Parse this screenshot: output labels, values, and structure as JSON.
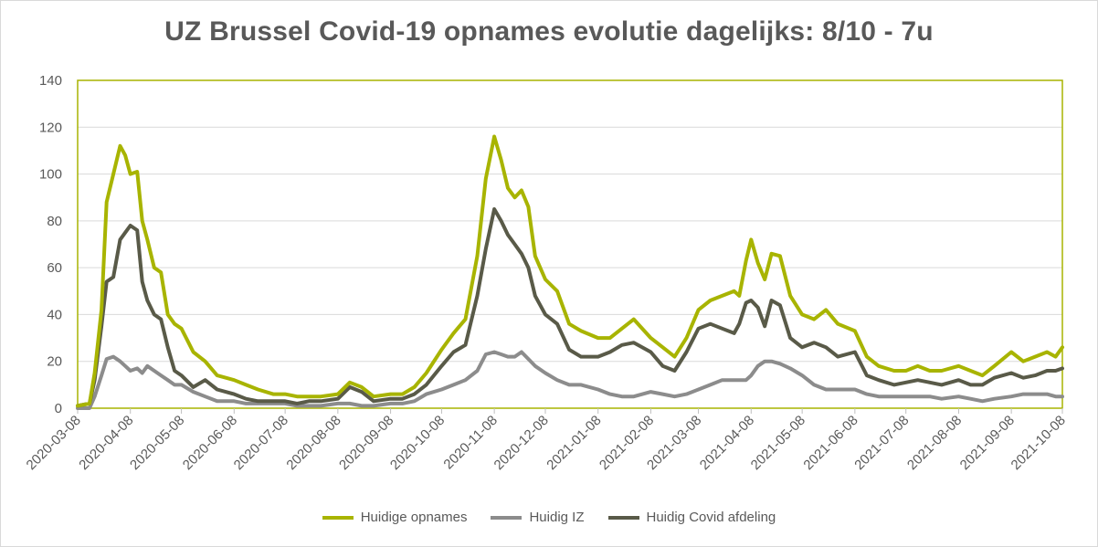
{
  "chart_data": {
    "type": "line",
    "title": "UZ Brussel Covid-19 opnames evolutie dagelijks: 8/10 - 7u",
    "xlabel": "",
    "ylabel": "",
    "ylim": [
      0,
      140
    ],
    "yticks": [
      "0",
      "20",
      "40",
      "60",
      "80",
      "100",
      "120",
      "140"
    ],
    "xticks": [
      "2020-03-08",
      "2020-04-08",
      "2020-05-08",
      "2020-06-08",
      "2020-07-08",
      "2020-08-08",
      "2020-09-08",
      "2020-10-08",
      "2020-11-08",
      "2020-12-08",
      "2021-01-08",
      "2021-02-08",
      "2021-03-08",
      "2021-04-08",
      "2021-05-08",
      "2021-06-08",
      "2021-07-08",
      "2021-08-08",
      "2021-09-08",
      "2021-10-08"
    ],
    "x": [
      "2020-03-08",
      "2020-03-15",
      "2020-03-18",
      "2020-03-22",
      "2020-03-25",
      "2020-03-29",
      "2020-04-02",
      "2020-04-05",
      "2020-04-08",
      "2020-04-12",
      "2020-04-15",
      "2020-04-18",
      "2020-04-22",
      "2020-04-26",
      "2020-04-30",
      "2020-05-04",
      "2020-05-08",
      "2020-05-15",
      "2020-05-22",
      "2020-05-29",
      "2020-06-08",
      "2020-06-15",
      "2020-06-22",
      "2020-07-01",
      "2020-07-08",
      "2020-07-15",
      "2020-07-22",
      "2020-07-29",
      "2020-08-08",
      "2020-08-15",
      "2020-08-22",
      "2020-08-29",
      "2020-09-08",
      "2020-09-15",
      "2020-09-22",
      "2020-09-29",
      "2020-10-08",
      "2020-10-15",
      "2020-10-22",
      "2020-10-29",
      "2020-11-03",
      "2020-11-08",
      "2020-11-12",
      "2020-11-16",
      "2020-11-20",
      "2020-11-24",
      "2020-11-28",
      "2020-12-02",
      "2020-12-08",
      "2020-12-15",
      "2020-12-22",
      "2020-12-29",
      "2021-01-08",
      "2021-01-15",
      "2021-01-22",
      "2021-01-29",
      "2021-02-08",
      "2021-02-15",
      "2021-02-22",
      "2021-03-01",
      "2021-03-08",
      "2021-03-15",
      "2021-03-22",
      "2021-03-29",
      "2021-04-01",
      "2021-04-05",
      "2021-04-08",
      "2021-04-12",
      "2021-04-16",
      "2021-04-20",
      "2021-04-25",
      "2021-05-01",
      "2021-05-08",
      "2021-05-15",
      "2021-05-22",
      "2021-05-29",
      "2021-06-08",
      "2021-06-15",
      "2021-06-22",
      "2021-07-01",
      "2021-07-08",
      "2021-07-15",
      "2021-07-22",
      "2021-07-29",
      "2021-08-08",
      "2021-08-15",
      "2021-08-22",
      "2021-08-29",
      "2021-09-08",
      "2021-09-15",
      "2021-09-22",
      "2021-09-29",
      "2021-10-04",
      "2021-10-08"
    ],
    "series": [
      {
        "name": "Huidige opnames",
        "color": "#a8b400",
        "values": [
          1,
          2,
          15,
          42,
          88,
          100,
          112,
          108,
          100,
          101,
          80,
          72,
          60,
          58,
          40,
          36,
          34,
          24,
          20,
          14,
          12,
          10,
          8,
          6,
          6,
          5,
          5,
          5,
          6,
          11,
          9,
          5,
          6,
          6,
          9,
          15,
          25,
          32,
          38,
          65,
          98,
          116,
          106,
          94,
          90,
          93,
          86,
          65,
          55,
          50,
          36,
          33,
          30,
          30,
          34,
          38,
          30,
          26,
          22,
          30,
          42,
          46,
          48,
          50,
          48,
          63,
          72,
          62,
          55,
          66,
          65,
          48,
          40,
          38,
          42,
          36,
          33,
          22,
          18,
          16,
          16,
          18,
          16,
          16,
          18,
          16,
          14,
          18,
          24,
          20,
          22,
          24,
          22,
          26
        ]
      },
      {
        "name": "Huidig IZ",
        "color": "#8c8c8c",
        "values": [
          0,
          0,
          5,
          14,
          21,
          22,
          20,
          18,
          16,
          17,
          15,
          18,
          16,
          14,
          12,
          10,
          10,
          7,
          5,
          3,
          3,
          2,
          2,
          2,
          2,
          1,
          1,
          1,
          2,
          2,
          1,
          1,
          2,
          2,
          3,
          6,
          8,
          10,
          12,
          16,
          23,
          24,
          23,
          22,
          22,
          24,
          21,
          18,
          15,
          12,
          10,
          10,
          8,
          6,
          5,
          5,
          7,
          6,
          5,
          6,
          8,
          10,
          12,
          12,
          12,
          12,
          14,
          18,
          20,
          20,
          19,
          17,
          14,
          10,
          8,
          8,
          8,
          6,
          5,
          5,
          5,
          5,
          5,
          4,
          5,
          4,
          3,
          4,
          5,
          6,
          6,
          6,
          5,
          5
        ]
      },
      {
        "name": "Huidig Covid afdeling",
        "color": "#595a48",
        "values": [
          1,
          2,
          12,
          35,
          54,
          56,
          72,
          75,
          78,
          76,
          54,
          46,
          40,
          38,
          26,
          16,
          14,
          9,
          12,
          8,
          6,
          4,
          3,
          3,
          3,
          2,
          3,
          3,
          4,
          9,
          7,
          3,
          4,
          4,
          6,
          10,
          18,
          24,
          27,
          48,
          68,
          85,
          80,
          74,
          70,
          66,
          60,
          48,
          40,
          36,
          25,
          22,
          22,
          24,
          27,
          28,
          24,
          18,
          16,
          24,
          34,
          36,
          34,
          32,
          36,
          45,
          46,
          43,
          35,
          46,
          44,
          30,
          26,
          28,
          26,
          22,
          24,
          14,
          12,
          10,
          11,
          12,
          11,
          10,
          12,
          10,
          10,
          13,
          15,
          13,
          14,
          16,
          16,
          17
        ]
      }
    ],
    "legend_position": "bottom",
    "grid": "horizontal",
    "plot_border_color": "#a8b400"
  }
}
